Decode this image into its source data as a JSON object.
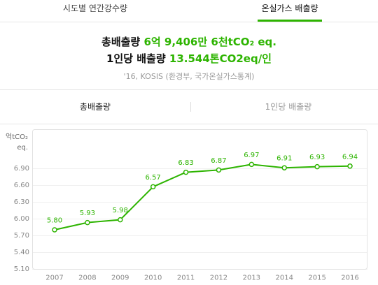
{
  "tabs": [
    {
      "label": "시도별 연간강수량",
      "active": false
    },
    {
      "label": "온실가스 배출량",
      "active": true
    }
  ],
  "summary": {
    "total_label": "총배출량",
    "total_value": "6억 9,406만 6천tCO₂ eq.",
    "per_capita_label": "1인당 배출량",
    "per_capita_value": "13.544톤CO2eq/인",
    "source": "'16, KOSIS (환경부, 국가온실가스통계)"
  },
  "chart_tabs": [
    {
      "label": "총배출량",
      "active": true
    },
    {
      "label": "1인당 배출량",
      "active": false
    }
  ],
  "colors": {
    "accent": "#2db400",
    "text": "#222222",
    "muted": "#999999",
    "axis_text": "#888888"
  },
  "chart_data": {
    "type": "line",
    "x": [
      "2007",
      "2008",
      "2009",
      "2010",
      "2011",
      "2012",
      "2013",
      "2014",
      "2015",
      "2016"
    ],
    "values": [
      5.8,
      5.93,
      5.98,
      6.57,
      6.83,
      6.87,
      6.97,
      6.91,
      6.93,
      6.94
    ],
    "data_labels": [
      "5.80",
      "5.93",
      "5.98",
      "6.57",
      "6.83",
      "6.87",
      "6.97",
      "6.91",
      "6.93",
      "6.94"
    ],
    "yticks": [
      "5.10",
      "5.40",
      "5.70",
      "6.00",
      "6.30",
      "6.60",
      "6.90"
    ],
    "ylabel": "억tCO₂ eq.",
    "ylim": [
      5.1,
      7.6
    ],
    "grid": true
  }
}
